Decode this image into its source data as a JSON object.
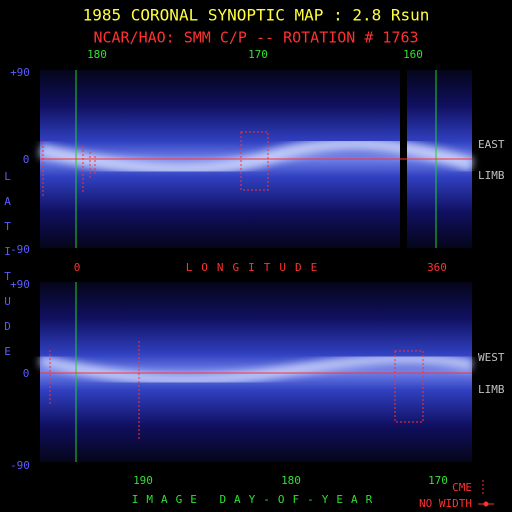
{
  "header": {
    "title": "1985 CORONAL SYNOPTIC MAP : 2.8 Rsun",
    "subtitle": "NCAR/HAO: SMM C/P -- ROTATION # 1763"
  },
  "y_axis_label": "LATITUDE",
  "top_panel": {
    "top_axis_labels": [
      "180",
      "170",
      "160"
    ],
    "y_labels": [
      "+90",
      "0",
      "-90"
    ],
    "side_labels": [
      "EAST",
      "LIMB"
    ],
    "start_label": "0",
    "axis_label": "LONGITUDE",
    "end_label": "360"
  },
  "bottom_panel": {
    "y_labels": [
      "+90",
      "0",
      "-90"
    ],
    "side_labels": [
      "WEST",
      "LIMB"
    ],
    "x_labels": [
      "190",
      "180",
      "170"
    ],
    "axis_label": "IMAGE DAY-OF-YEAR"
  },
  "legend": {
    "cme": "CME",
    "no_width": "NO WIDTH"
  }
}
